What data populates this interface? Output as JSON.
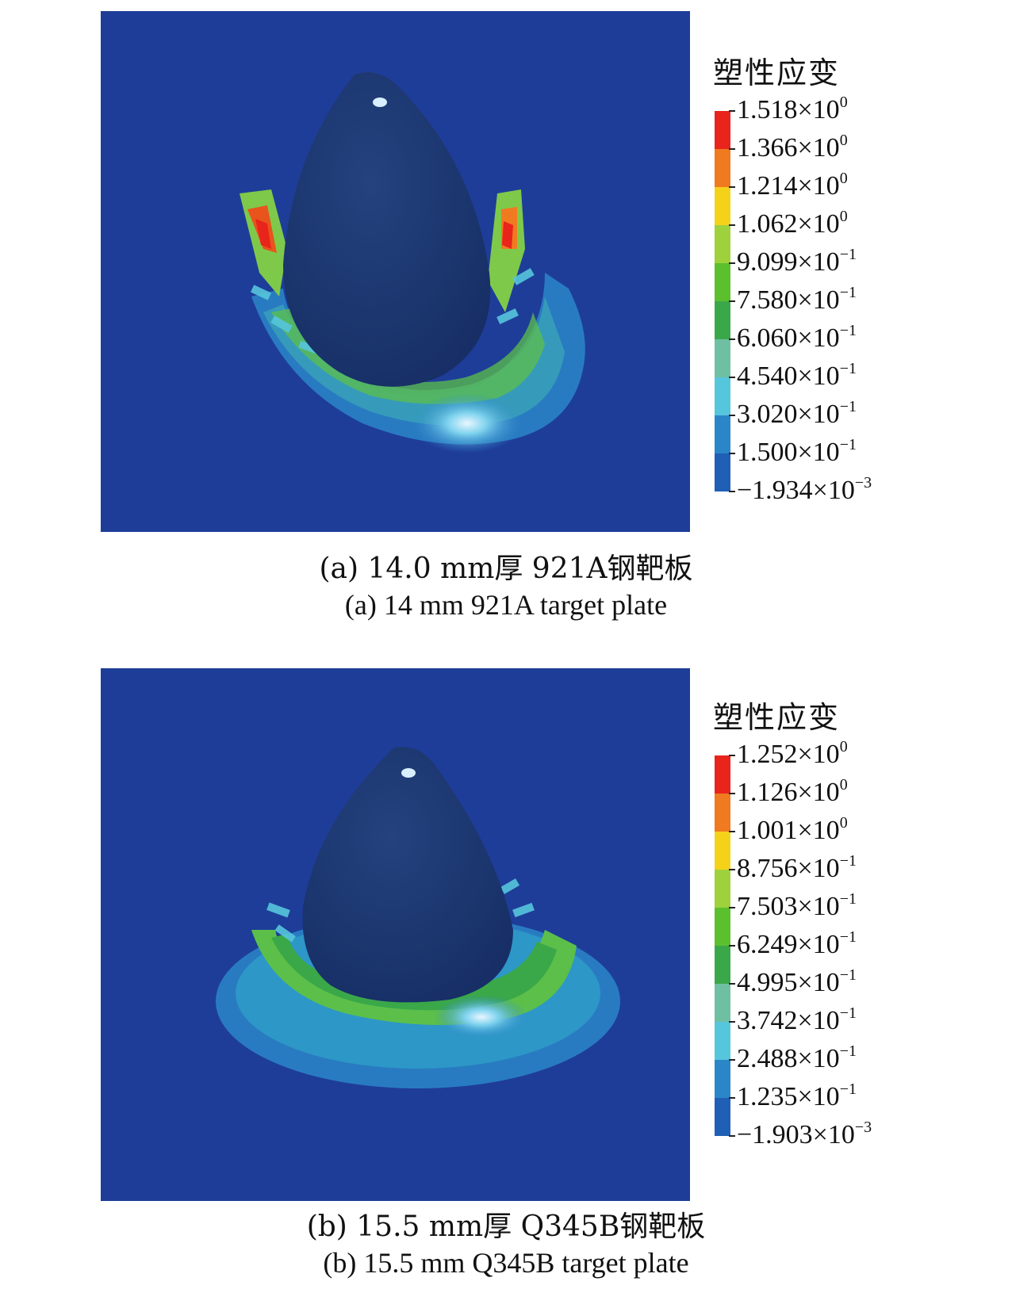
{
  "panel_a": {
    "legend_title": "塑性应变",
    "colors": [
      "#e8241c",
      "#f07a1f",
      "#f5d21a",
      "#9fd13c",
      "#5cbf2e",
      "#3aa849",
      "#6fbfa3",
      "#56c6dc",
      "#2b86c8",
      "#1f5fb6",
      "#1d3c96"
    ],
    "ticks": [
      {
        "mant": "1.518×10",
        "exp": "0"
      },
      {
        "mant": "1.366×10",
        "exp": "0"
      },
      {
        "mant": "1.214×10",
        "exp": "0"
      },
      {
        "mant": "1.062×10",
        "exp": "0"
      },
      {
        "mant": "9.099×10",
        "exp": "−1"
      },
      {
        "mant": "7.580×10",
        "exp": "−1"
      },
      {
        "mant": "6.060×10",
        "exp": "−1"
      },
      {
        "mant": "4.540×10",
        "exp": "−1"
      },
      {
        "mant": "3.020×10",
        "exp": "−1"
      },
      {
        "mant": "1.500×10",
        "exp": "−1"
      },
      {
        "mant": "−1.934×10",
        "exp": "−3"
      }
    ],
    "caption_cn": "(a) 14.0 mm厚 921A钢靶板",
    "caption_en": "(a) 14 mm 921A target plate"
  },
  "panel_b": {
    "legend_title": "塑性应变",
    "colors": [
      "#e8241c",
      "#f07a1f",
      "#f5d21a",
      "#9fd13c",
      "#5cbf2e",
      "#3aa849",
      "#6fbfa3",
      "#56c6dc",
      "#2b86c8",
      "#1f5fb6",
      "#1d3c96"
    ],
    "ticks": [
      {
        "mant": "1.252×10",
        "exp": "0"
      },
      {
        "mant": "1.126×10",
        "exp": "0"
      },
      {
        "mant": "1.001×10",
        "exp": "0"
      },
      {
        "mant": "8.756×10",
        "exp": "−1"
      },
      {
        "mant": "7.503×10",
        "exp": "−1"
      },
      {
        "mant": "6.249×10",
        "exp": "−1"
      },
      {
        "mant": "4.995×10",
        "exp": "−1"
      },
      {
        "mant": "3.742×10",
        "exp": "−1"
      },
      {
        "mant": "2.488×10",
        "exp": "−1"
      },
      {
        "mant": "1.235×10",
        "exp": "−1"
      },
      {
        "mant": "−1.903×10",
        "exp": "−3"
      }
    ],
    "caption_cn": "(b) 15.5 mm厚 Q345B钢靶板",
    "caption_en": "(b) 15.5 mm Q345B target plate"
  },
  "background_color": "#1e3d99"
}
